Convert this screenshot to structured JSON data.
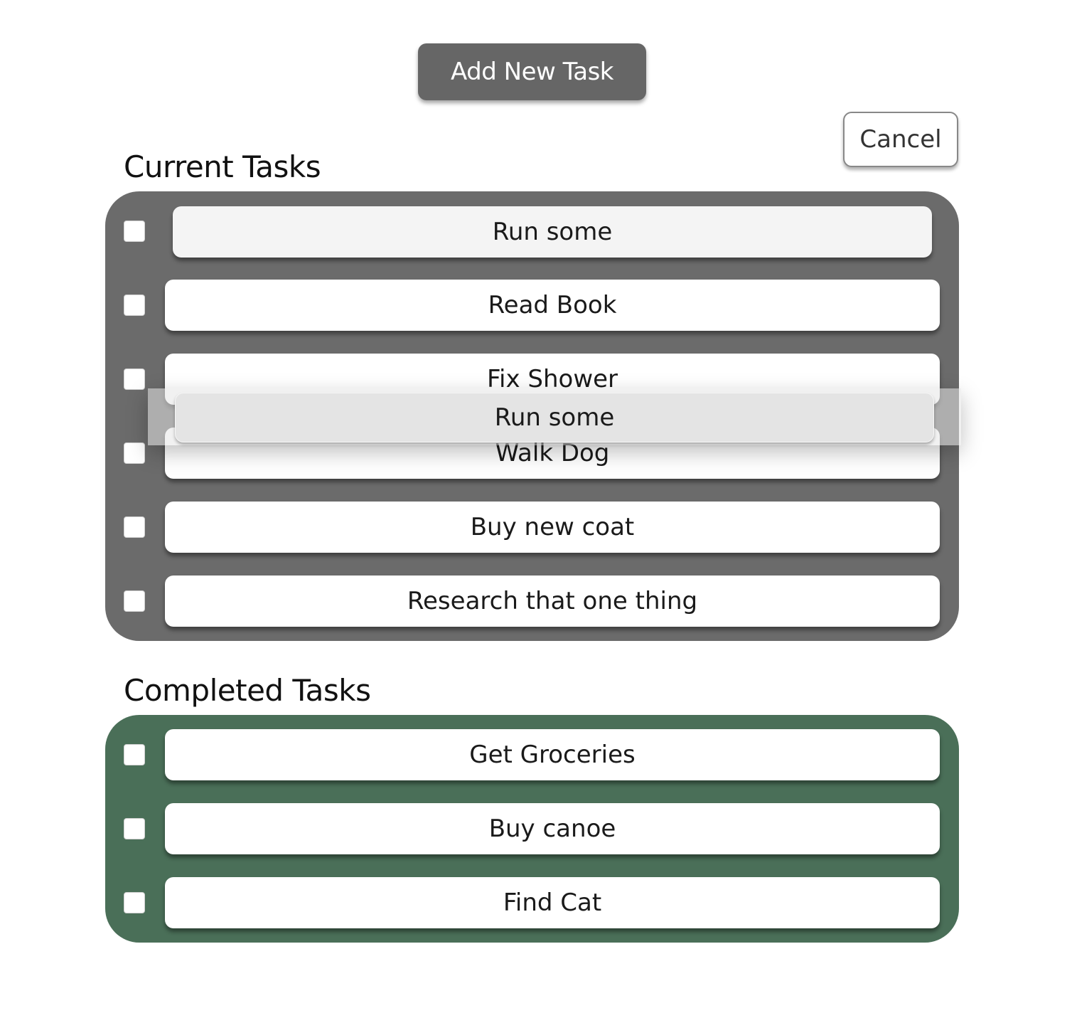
{
  "toolbar": {
    "add_label": "Add New Task",
    "cancel_label": "Cancel"
  },
  "current": {
    "title": "Current Tasks",
    "panel_color": "#6b6b6b",
    "tasks": [
      {
        "label": "Run some",
        "checked": false,
        "state": "drag-placeholder"
      },
      {
        "label": "Read Book",
        "checked": false
      },
      {
        "label": "Fix Shower",
        "checked": false
      },
      {
        "label": "Walk Dog",
        "checked": false
      },
      {
        "label": "Buy new coat",
        "checked": false
      },
      {
        "label": "Research that one thing",
        "checked": false
      }
    ]
  },
  "dragging": {
    "label": "Run some"
  },
  "completed": {
    "title": "Completed Tasks",
    "panel_color": "#4a6f58",
    "tasks": [
      {
        "label": "Get Groceries",
        "checked": false
      },
      {
        "label": "Buy canoe",
        "checked": false
      },
      {
        "label": "Find Cat",
        "checked": false
      }
    ]
  }
}
